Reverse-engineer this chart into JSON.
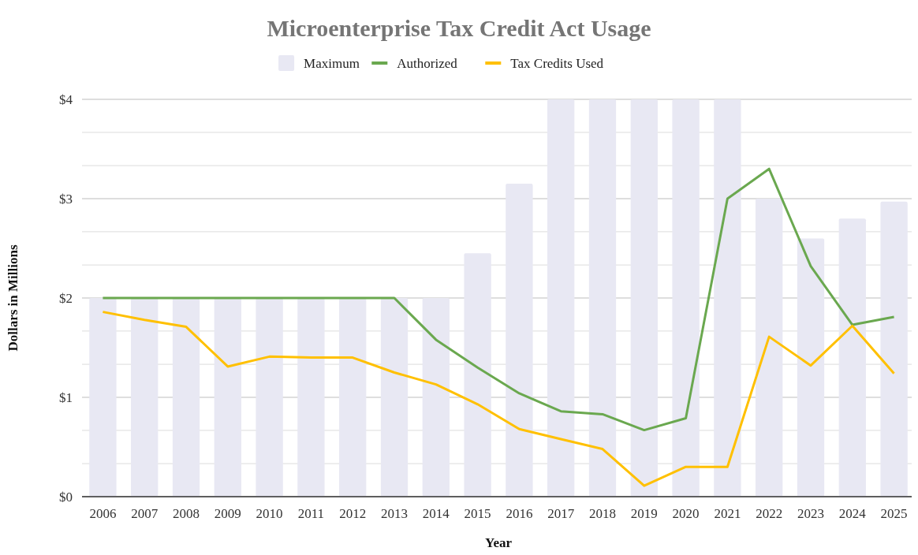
{
  "chart_data": {
    "type": "bar",
    "title": "Microenterprise Tax Credit Act Usage",
    "xlabel": "Year",
    "ylabel": "Dollars in Millions",
    "categories": [
      "2006",
      "2007",
      "2008",
      "2009",
      "2010",
      "2011",
      "2012",
      "2013",
      "2014",
      "2015",
      "2016",
      "2017",
      "2018",
      "2019",
      "2020",
      "2021",
      "2022",
      "2023",
      "2024",
      "2025"
    ],
    "series": [
      {
        "name": "Maximum",
        "color": "#e8e8f3",
        "values": [
          2,
          2,
          2,
          2,
          2,
          2,
          2,
          2,
          2,
          2.45,
          3.15,
          4,
          4,
          4,
          4,
          4,
          3,
          2.6,
          2.8,
          2.97
        ]
      },
      {
        "name": "Authorized",
        "type": "line",
        "color": "#6aa84f",
        "values": [
          2,
          2,
          2,
          2,
          2,
          2,
          2,
          2,
          1.58,
          1.3,
          1.04,
          0.86,
          0.83,
          0.67,
          0.79,
          3,
          3.3,
          2.32,
          1.73,
          1.81
        ]
      },
      {
        "name": "Tax Credits Used",
        "type": "line",
        "color": "#ffc000",
        "values": [
          1.86,
          1.78,
          1.71,
          1.31,
          1.41,
          1.4,
          1.4,
          1.25,
          1.13,
          0.93,
          0.68,
          0.58,
          0.48,
          0.11,
          0.3,
          0.3,
          1.61,
          1.32,
          1.72,
          1.24
        ]
      }
    ],
    "ylim": [
      0,
      4
    ],
    "yticks": [
      {
        "value": 0,
        "label": "$0"
      },
      {
        "value": 0.333,
        "label": null
      },
      {
        "value": 0.667,
        "label": null
      },
      {
        "value": 1,
        "label": "$1"
      },
      {
        "value": 1.333,
        "label": null
      },
      {
        "value": 1.667,
        "label": null
      },
      {
        "value": 2,
        "label": "$2"
      },
      {
        "value": 2.333,
        "label": null
      },
      {
        "value": 2.667,
        "label": null
      },
      {
        "value": 3,
        "label": "$3"
      },
      {
        "value": 3.333,
        "label": null
      },
      {
        "value": 3.667,
        "label": null
      },
      {
        "value": 4,
        "label": "$4"
      }
    ],
    "grid": "y",
    "legend": "top",
    "marker": "none",
    "line_style": "solid"
  }
}
